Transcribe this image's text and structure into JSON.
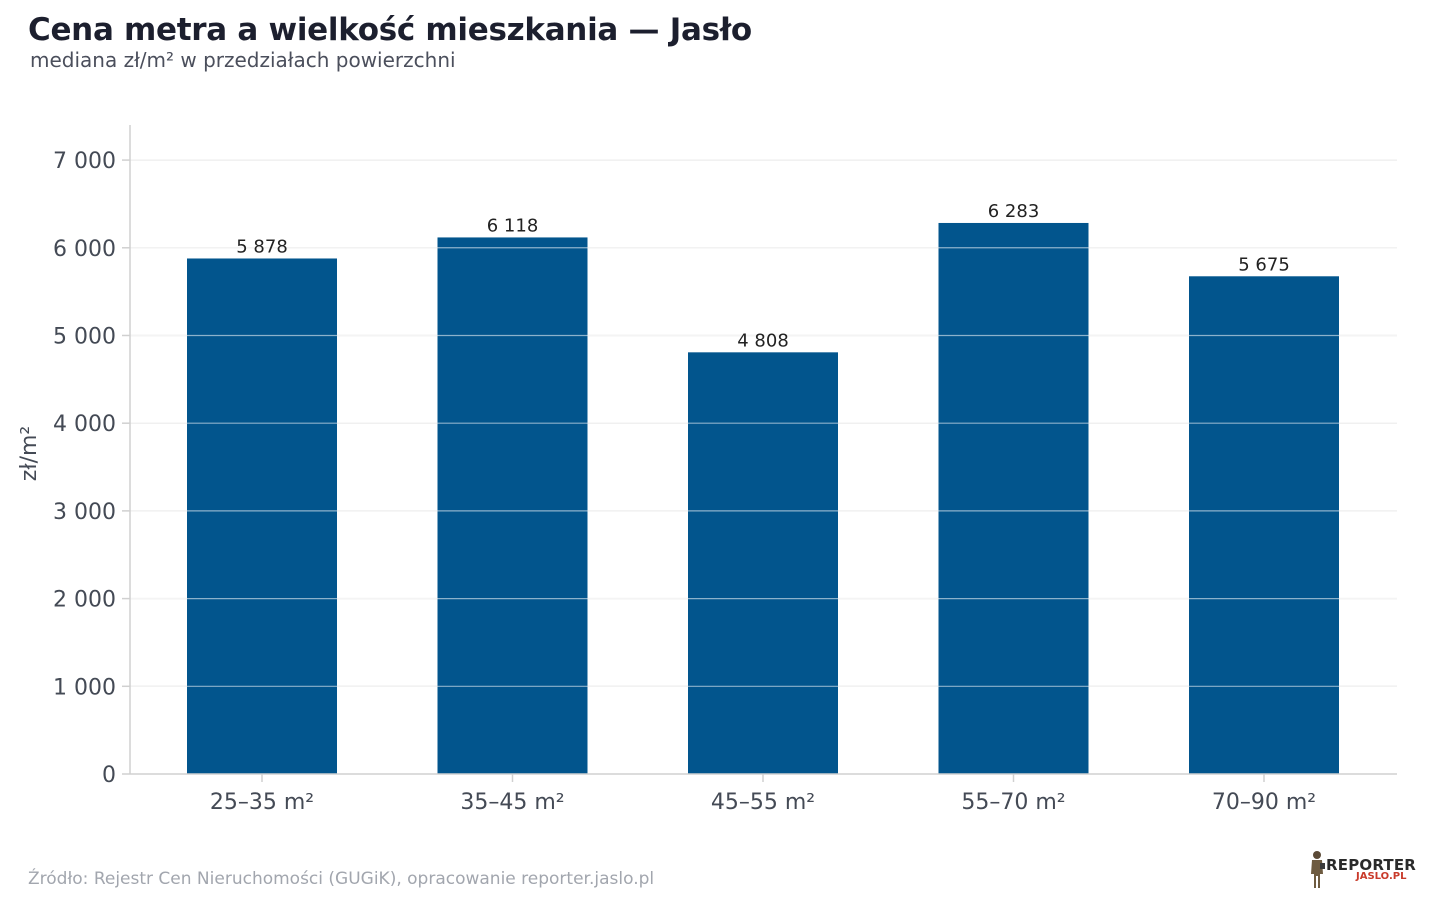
{
  "header": {
    "title": "Cena metra a wielkość mieszkania — Jasło",
    "subtitle": "mediana zł/m² w przedziałach powierzchni"
  },
  "chart_data": {
    "type": "bar",
    "title": "Cena metra a wielkość mieszkania — Jasło",
    "subtitle": "mediana zł/m² w przedziałach powierzchni",
    "xlabel": "",
    "ylabel": "zł/m²",
    "categories": [
      "25–35 m²",
      "35–45 m²",
      "45–55 m²",
      "55–70 m²",
      "70–90 m²"
    ],
    "values": [
      5878,
      6118,
      4808,
      6283,
      5675
    ],
    "value_labels": [
      "5 878",
      "6 118",
      "4 808",
      "6 283",
      "5 675"
    ],
    "ylim": [
      0,
      7400
    ],
    "yticks": [
      0,
      1000,
      2000,
      3000,
      4000,
      5000,
      6000,
      7000
    ],
    "ytick_labels": [
      "0",
      "1 000",
      "2 000",
      "3 000",
      "4 000",
      "5 000",
      "6 000",
      "7 000"
    ],
    "grid": true,
    "bar_color": "#02558d"
  },
  "footer": {
    "source": "Źródło: Rejestr Cen Nieruchomości (GUGiK), opracowanie reporter.jaslo.pl",
    "logo_top": "REPORTER",
    "logo_bottom": "JASLO.PL"
  },
  "colors": {
    "bar": "#02558d",
    "grid": "#e6e6e6",
    "axis": "#d0d0d0",
    "text": "#333333",
    "logo_accent": "#c93a2a"
  }
}
